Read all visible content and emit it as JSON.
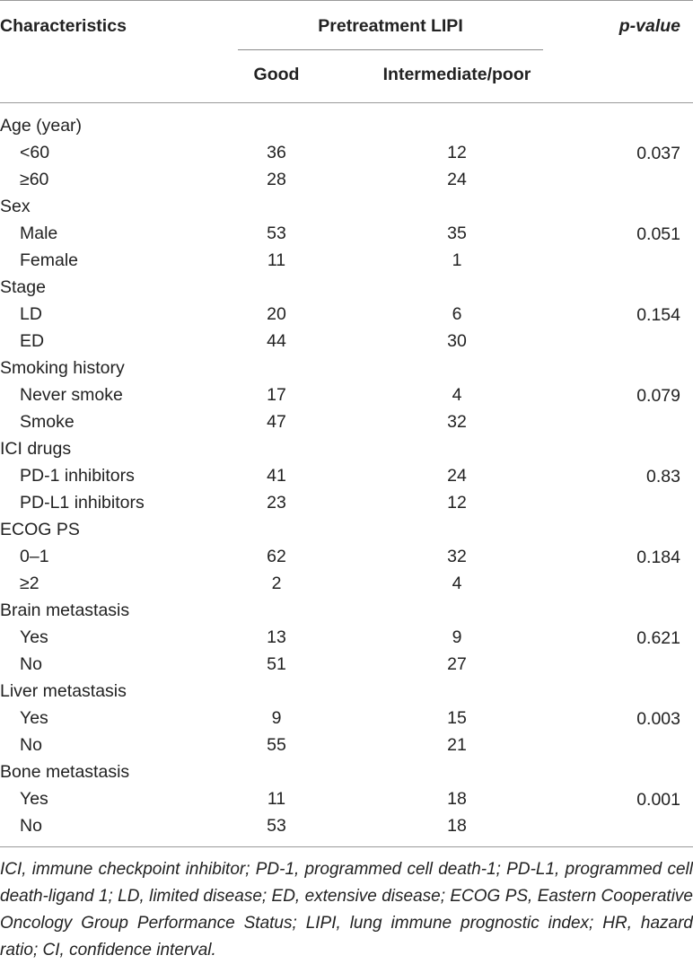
{
  "header": {
    "characteristics": "Characteristics",
    "pretreatment": "Pretreatment LIPI",
    "pvalue": "p-value",
    "good": "Good",
    "intermediate_poor": "Intermediate/poor"
  },
  "rows": [
    {
      "kind": "category",
      "label": "Age (year)"
    },
    {
      "kind": "sub",
      "label": "<60",
      "good": "36",
      "int": "12",
      "p": "0.037"
    },
    {
      "kind": "sub",
      "label": "≥60",
      "good": "28",
      "int": "24",
      "p": ""
    },
    {
      "kind": "category",
      "label": "Sex"
    },
    {
      "kind": "sub",
      "label": "Male",
      "good": "53",
      "int": "35",
      "p": "0.051"
    },
    {
      "kind": "sub",
      "label": "Female",
      "good": "11",
      "int": "1",
      "p": ""
    },
    {
      "kind": "category",
      "label": "Stage"
    },
    {
      "kind": "sub",
      "label": "LD",
      "good": "20",
      "int": "6",
      "p": "0.154"
    },
    {
      "kind": "sub",
      "label": "ED",
      "good": "44",
      "int": "30",
      "p": ""
    },
    {
      "kind": "category",
      "label": "Smoking history"
    },
    {
      "kind": "sub",
      "label": "Never smoke",
      "good": "17",
      "int": "4",
      "p": "0.079"
    },
    {
      "kind": "sub",
      "label": "Smoke",
      "good": "47",
      "int": "32",
      "p": ""
    },
    {
      "kind": "category",
      "label": "ICI drugs"
    },
    {
      "kind": "sub",
      "label": "PD-1 inhibitors",
      "good": "41",
      "int": "24",
      "p": "0.83"
    },
    {
      "kind": "sub",
      "label": "PD-L1 inhibitors",
      "good": "23",
      "int": "12",
      "p": ""
    },
    {
      "kind": "category",
      "label": "ECOG PS"
    },
    {
      "kind": "sub",
      "label": "0–1",
      "good": "62",
      "int": "32",
      "p": "0.184"
    },
    {
      "kind": "sub",
      "label": "≥2",
      "good": "2",
      "int": "4",
      "p": ""
    },
    {
      "kind": "category",
      "label": "Brain metastasis"
    },
    {
      "kind": "sub",
      "label": "Yes",
      "good": "13",
      "int": "9",
      "p": "0.621"
    },
    {
      "kind": "sub",
      "label": "No",
      "good": "51",
      "int": "27",
      "p": ""
    },
    {
      "kind": "category",
      "label": "Liver metastasis"
    },
    {
      "kind": "sub",
      "label": "Yes",
      "good": "9",
      "int": "15",
      "p": "0.003"
    },
    {
      "kind": "sub",
      "label": "No",
      "good": "55",
      "int": "21",
      "p": ""
    },
    {
      "kind": "category",
      "label": "Bone metastasis"
    },
    {
      "kind": "sub",
      "label": "Yes",
      "good": "11",
      "int": "18",
      "p": "0.001"
    },
    {
      "kind": "sub",
      "label": "No",
      "good": "53",
      "int": "18",
      "p": ""
    }
  ],
  "footnote": "ICI, immune checkpoint inhibitor; PD-1, programmed cell death-1; PD-L1, programmed cell death-ligand 1; LD, limited disease; ED, extensive disease; ECOG PS, Eastern Cooperative Oncology Group Performance Status; LIPI, lung immune prognostic index; HR, hazard ratio; CI, confidence interval."
}
